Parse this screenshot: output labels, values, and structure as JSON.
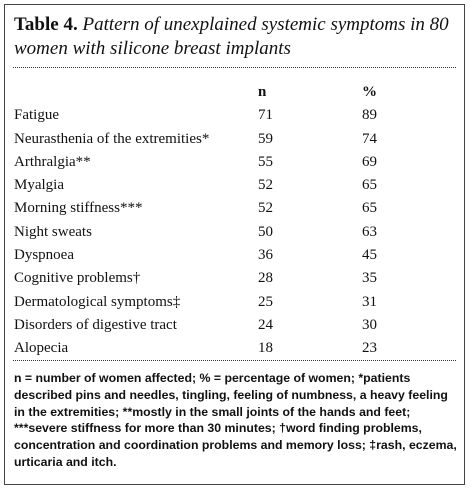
{
  "table": {
    "label": "Table 4.",
    "caption": "Pattern of unexplained systemic symptoms in 80 women with silicone breast implants",
    "columns": [
      "n",
      "%"
    ],
    "rows": [
      [
        "Fatigue",
        71,
        89
      ],
      [
        "Neurasthenia of the extremities*",
        59,
        74
      ],
      [
        "Arthralgia**",
        55,
        69
      ],
      [
        "Myalgia",
        52,
        65
      ],
      [
        "Morning stiffness***",
        52,
        65
      ],
      [
        "Night sweats",
        50,
        63
      ],
      [
        "Dyspnoea",
        36,
        45
      ],
      [
        "Cognitive problems†",
        28,
        35
      ],
      [
        "Dermatological symptoms‡",
        25,
        31
      ],
      [
        "Disorders of digestive tract",
        24,
        30
      ],
      [
        "Alopecia",
        18,
        23
      ]
    ],
    "footnote": "n = number of women affected; % = percentage of women; *patients described pins and needles, tingling, feeling of numbness, a heavy feeling in the extremities; **mostly in the small joints of the hands and feet; ***severe stiffness for more than 30 minutes; †word finding problems, concentration and coordination problems and memory loss; ‡rash, eczema, urticaria and itch."
  }
}
